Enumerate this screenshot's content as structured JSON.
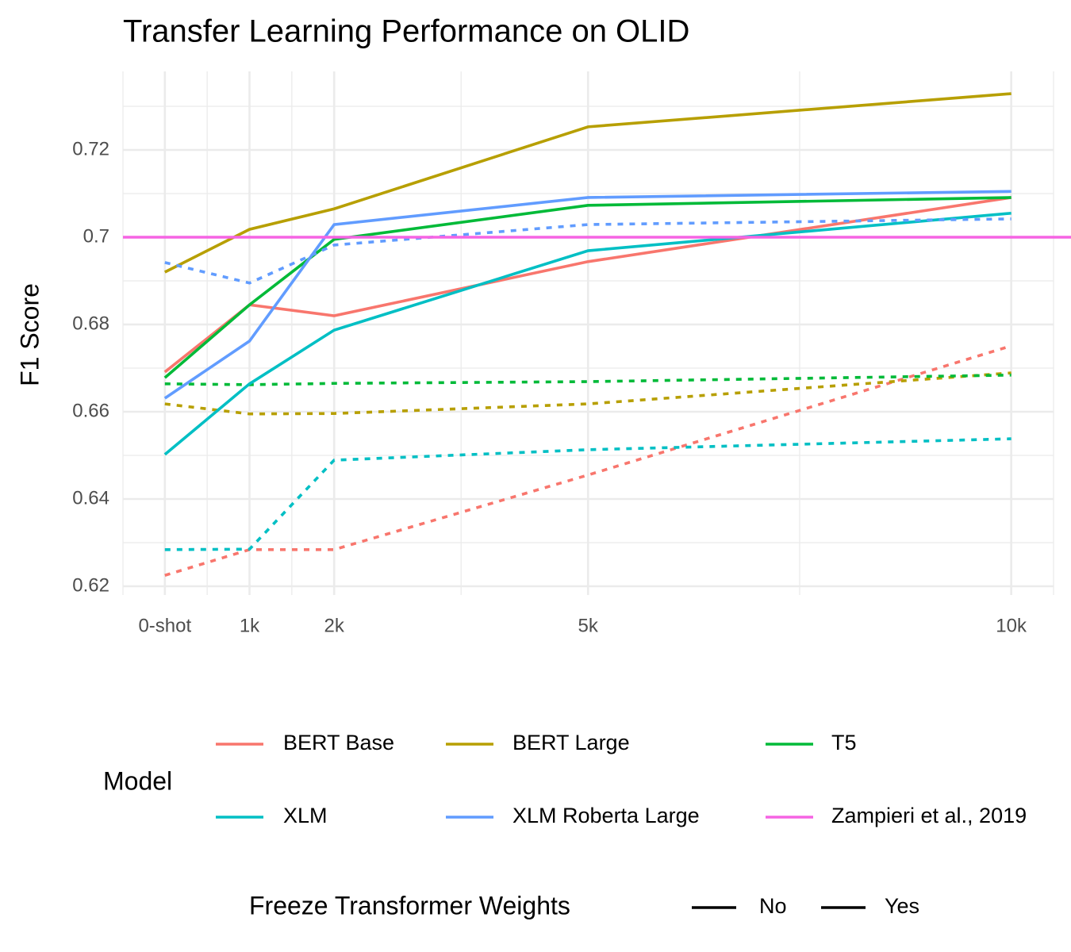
{
  "chart_data": {
    "type": "line",
    "title": "Transfer Learning Performance on OLID",
    "y_label": "F1 Score",
    "x": [
      0,
      1000,
      2000,
      5000,
      10000
    ],
    "xlim": [
      -495,
      10500
    ],
    "xticks": [
      {
        "value": 0,
        "label": "0-shot"
      },
      {
        "value": 1000,
        "label": "1k"
      },
      {
        "value": 2000,
        "label": "2k"
      },
      {
        "value": 5000,
        "label": "5k"
      },
      {
        "value": 10000,
        "label": "10k"
      }
    ],
    "ylim": [
      0.618,
      0.738
    ],
    "yticks": [
      0.62,
      0.64,
      0.66,
      0.68,
      0.7,
      0.72
    ],
    "grid": true,
    "series": [
      {
        "name": "BERT Base",
        "freeze": "No",
        "color": "#F8766D",
        "values": [
          0.6691,
          0.6845,
          0.682,
          0.6944,
          0.7091
        ]
      },
      {
        "name": "BERT Base",
        "freeze": "Yes",
        "color": "#F8766D",
        "values": [
          0.6225,
          0.6284,
          0.6284,
          0.6455,
          0.6751
        ]
      },
      {
        "name": "BERT Large",
        "freeze": "No",
        "color": "#B79F00",
        "values": [
          0.692,
          0.7018,
          0.7065,
          0.7253,
          0.7329
        ]
      },
      {
        "name": "BERT Large",
        "freeze": "Yes",
        "color": "#B79F00",
        "values": [
          0.6618,
          0.6595,
          0.6596,
          0.6618,
          0.6689
        ]
      },
      {
        "name": "T5",
        "freeze": "No",
        "color": "#00BA38",
        "values": [
          0.6678,
          0.6845,
          0.6995,
          0.7073,
          0.7091
        ]
      },
      {
        "name": "T5",
        "freeze": "Yes",
        "color": "#00BA38",
        "values": [
          0.6664,
          0.6662,
          0.6665,
          0.6669,
          0.6684
        ]
      },
      {
        "name": "XLM",
        "freeze": "No",
        "color": "#00BFC4",
        "values": [
          0.6502,
          0.6664,
          0.6787,
          0.6969,
          0.7055
        ]
      },
      {
        "name": "XLM",
        "freeze": "Yes",
        "color": "#00BFC4",
        "values": [
          0.6284,
          0.6285,
          0.6489,
          0.6513,
          0.6538
        ]
      },
      {
        "name": "XLM Roberta Large",
        "freeze": "No",
        "color": "#619CFF",
        "values": [
          0.6631,
          0.6762,
          0.7029,
          0.7091,
          0.7105
        ]
      },
      {
        "name": "XLM Roberta Large",
        "freeze": "Yes",
        "color": "#619CFF",
        "values": [
          0.6942,
          0.6895,
          0.6982,
          0.7029,
          0.7042
        ]
      }
    ],
    "reference_line": {
      "name": "Zampieri et al., 2019",
      "color": "#F564E3",
      "value": 0.7
    },
    "legend": {
      "model_title": "Model",
      "models": [
        {
          "name": "BERT Base",
          "color": "#F8766D"
        },
        {
          "name": "BERT Large",
          "color": "#B79F00"
        },
        {
          "name": "T5",
          "color": "#00BA38"
        },
        {
          "name": "XLM",
          "color": "#00BFC4"
        },
        {
          "name": "XLM Roberta Large",
          "color": "#619CFF"
        },
        {
          "name": "Zampieri et al., 2019",
          "color": "#F564E3"
        }
      ],
      "freeze_title": "Freeze Transformer Weights",
      "freeze": [
        "No",
        "Yes"
      ]
    }
  }
}
